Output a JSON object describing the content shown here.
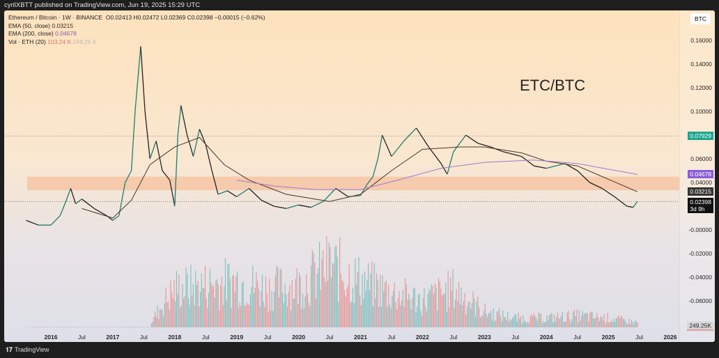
{
  "header": {
    "published": "cyrilXBTT published on TradingView.com, Jun 19, 2025 15:29 UTC"
  },
  "legend": {
    "symbol": "Ethereum / Bitcoin · 1W · BINANCE",
    "ohlc": "O0.02413  H0.02472  L0.02369  C0.02398  −0.00015 (−0.62%)",
    "ema50_label": "EMA (50, close)",
    "ema50_value": "0.03215",
    "ema200_label": "EMA (200, close)",
    "ema200_value": "0.04678",
    "vol_label": "Vol · ETH (20)",
    "vol_value": "103.24 K",
    "vol_ma": "249.25 K"
  },
  "symbol_button": "BTC",
  "annotation": "ETC/BTC",
  "footer": {
    "logo": "TradingView"
  },
  "colors": {
    "up": "#26a69a",
    "down": "#ef5350",
    "ema50": "#4a3328",
    "ema200": "#9b7bd0",
    "zone": "#f6b88f"
  },
  "chart_data": {
    "type": "line",
    "title": "Ethereum / Bitcoin · 1W · BINANCE",
    "ylim": [
      -0.07,
      0.165
    ],
    "y_ticks": [
      "0.16000",
      "0.14000",
      "0.12000",
      "0.10000",
      "0.06000",
      "0.04000",
      "-0.00000",
      "-0.02000",
      "-0.04000",
      "-0.06000"
    ],
    "y_tick_values": [
      0.16,
      0.14,
      0.12,
      0.1,
      0.06,
      0.04,
      0,
      -0.02,
      -0.04,
      -0.06
    ],
    "x_ticks": [
      {
        "t": 2016,
        "l": "2016"
      },
      {
        "t": 2016.5,
        "l": "Jul"
      },
      {
        "t": 2017,
        "l": "2017"
      },
      {
        "t": 2017.5,
        "l": "Jul"
      },
      {
        "t": 2018,
        "l": "2018"
      },
      {
        "t": 2018.5,
        "l": "Jul"
      },
      {
        "t": 2019,
        "l": "2019"
      },
      {
        "t": 2019.5,
        "l": "Jul"
      },
      {
        "t": 2020,
        "l": "2020"
      },
      {
        "t": 2020.5,
        "l": "Jul"
      },
      {
        "t": 2021,
        "l": "2021"
      },
      {
        "t": 2021.5,
        "l": "Jul"
      },
      {
        "t": 2022,
        "l": "2022"
      },
      {
        "t": 2022.5,
        "l": "Jul"
      },
      {
        "t": 2023,
        "l": "2023"
      },
      {
        "t": 2023.5,
        "l": "Jul"
      },
      {
        "t": 2024,
        "l": "2024"
      },
      {
        "t": 2024.5,
        "l": "Jul"
      },
      {
        "t": 2025,
        "l": "2025"
      },
      {
        "t": 2025.5,
        "l": "Jul"
      },
      {
        "t": 2026,
        "l": "2026"
      }
    ],
    "xlim": [
      2015.4,
      2026.1
    ],
    "price": [
      [
        2015.6,
        0.008
      ],
      [
        2015.8,
        0.004
      ],
      [
        2016.0,
        0.004
      ],
      [
        2016.15,
        0.012
      ],
      [
        2016.25,
        0.025
      ],
      [
        2016.32,
        0.035
      ],
      [
        2016.4,
        0.022
      ],
      [
        2016.5,
        0.026
      ],
      [
        2016.7,
        0.018
      ],
      [
        2016.9,
        0.012
      ],
      [
        2017.0,
        0.008
      ],
      [
        2017.1,
        0.012
      ],
      [
        2017.2,
        0.04
      ],
      [
        2017.3,
        0.05
      ],
      [
        2017.36,
        0.1
      ],
      [
        2017.45,
        0.155
      ],
      [
        2017.52,
        0.1
      ],
      [
        2017.6,
        0.06
      ],
      [
        2017.7,
        0.075
      ],
      [
        2017.8,
        0.05
      ],
      [
        2017.92,
        0.042
      ],
      [
        2018.0,
        0.02
      ],
      [
        2018.05,
        0.08
      ],
      [
        2018.1,
        0.105
      ],
      [
        2018.2,
        0.08
      ],
      [
        2018.3,
        0.062
      ],
      [
        2018.4,
        0.085
      ],
      [
        2018.5,
        0.072
      ],
      [
        2018.6,
        0.05
      ],
      [
        2018.7,
        0.03
      ],
      [
        2018.85,
        0.033
      ],
      [
        2019.0,
        0.028
      ],
      [
        2019.2,
        0.035
      ],
      [
        2019.4,
        0.025
      ],
      [
        2019.6,
        0.02
      ],
      [
        2019.8,
        0.018
      ],
      [
        2020.0,
        0.021
      ],
      [
        2020.2,
        0.019
      ],
      [
        2020.4,
        0.024
      ],
      [
        2020.6,
        0.035
      ],
      [
        2020.8,
        0.028
      ],
      [
        2021.0,
        0.029
      ],
      [
        2021.1,
        0.038
      ],
      [
        2021.2,
        0.045
      ],
      [
        2021.28,
        0.06
      ],
      [
        2021.35,
        0.08
      ],
      [
        2021.5,
        0.062
      ],
      [
        2021.7,
        0.075
      ],
      [
        2021.9,
        0.086
      ],
      [
        2022.1,
        0.07
      ],
      [
        2022.3,
        0.056
      ],
      [
        2022.4,
        0.047
      ],
      [
        2022.5,
        0.066
      ],
      [
        2022.7,
        0.08
      ],
      [
        2022.9,
        0.073
      ],
      [
        2023.1,
        0.07
      ],
      [
        2023.3,
        0.066
      ],
      [
        2023.6,
        0.062
      ],
      [
        2023.8,
        0.054
      ],
      [
        2024.0,
        0.052
      ],
      [
        2024.3,
        0.056
      ],
      [
        2024.5,
        0.05
      ],
      [
        2024.7,
        0.04
      ],
      [
        2024.9,
        0.035
      ],
      [
        2025.1,
        0.028
      ],
      [
        2025.3,
        0.02
      ],
      [
        2025.4,
        0.019
      ],
      [
        2025.47,
        0.024
      ]
    ],
    "ema50": [
      [
        2016.5,
        0.018
      ],
      [
        2017.0,
        0.01
      ],
      [
        2017.3,
        0.025
      ],
      [
        2017.6,
        0.055
      ],
      [
        2018.0,
        0.07
      ],
      [
        2018.4,
        0.078
      ],
      [
        2018.8,
        0.055
      ],
      [
        2019.2,
        0.042
      ],
      [
        2019.8,
        0.03
      ],
      [
        2020.5,
        0.024
      ],
      [
        2021.0,
        0.03
      ],
      [
        2021.5,
        0.05
      ],
      [
        2022.0,
        0.068
      ],
      [
        2022.6,
        0.07
      ],
      [
        2023.0,
        0.07
      ],
      [
        2023.6,
        0.065
      ],
      [
        2024.0,
        0.058
      ],
      [
        2024.5,
        0.054
      ],
      [
        2024.9,
        0.045
      ],
      [
        2025.47,
        0.03215
      ]
    ],
    "ema200": [
      [
        2019.0,
        0.042
      ],
      [
        2019.6,
        0.037
      ],
      [
        2020.3,
        0.034
      ],
      [
        2021.0,
        0.034
      ],
      [
        2021.6,
        0.042
      ],
      [
        2022.3,
        0.052
      ],
      [
        2023.0,
        0.057
      ],
      [
        2023.8,
        0.059
      ],
      [
        2024.5,
        0.056
      ],
      [
        2025.47,
        0.04678
      ]
    ],
    "zone": [
      0.0335,
      0.045
    ],
    "hlines": [
      0.07929,
      0.02398
    ],
    "price_tags": [
      {
        "label": "0.07929",
        "value": 0.07929,
        "color": "#1aa58f"
      },
      {
        "label": "0.04678",
        "value": 0.04678,
        "color": "#8e5cd8"
      },
      {
        "label": "0.03215",
        "value": 0.03215,
        "color": "#333"
      },
      {
        "label": "0.02398",
        "value": 0.02398,
        "color": "#111",
        "sub": "3d 9h"
      }
    ],
    "volume_tag": "249.25K",
    "volume_relative": [
      [
        2017.6,
        0.05
      ],
      [
        2017.8,
        0.3
      ],
      [
        2018.0,
        0.5
      ],
      [
        2018.5,
        0.55
      ],
      [
        2019.0,
        0.6
      ],
      [
        2019.5,
        0.5
      ],
      [
        2020.0,
        0.55
      ],
      [
        2020.5,
        0.8
      ],
      [
        2021.0,
        0.6
      ],
      [
        2021.5,
        0.45
      ],
      [
        2022.0,
        0.35
      ],
      [
        2022.5,
        0.5
      ],
      [
        2023.0,
        0.2
      ],
      [
        2023.5,
        0.12
      ],
      [
        2024.0,
        0.12
      ],
      [
        2024.5,
        0.15
      ],
      [
        2025.0,
        0.12
      ],
      [
        2025.47,
        0.06
      ]
    ]
  }
}
